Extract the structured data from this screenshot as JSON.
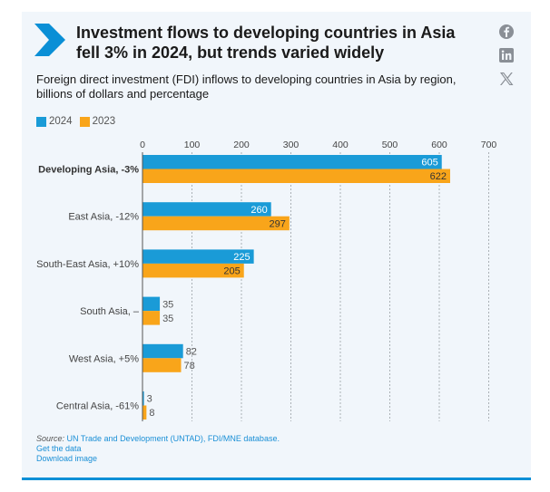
{
  "header": {
    "title": "Investment flows to developing countries in Asia fell 3% in 2024, but trends varied widely",
    "subtitle": "Foreign direct investment (FDI) inflows to developing countries in Asia by region, billions of dollars and percentage",
    "share_icons": [
      "facebook-icon",
      "linkedin-icon",
      "x-icon"
    ]
  },
  "colors": {
    "series_2024": "#1a9bd7",
    "series_2023": "#f9a51a",
    "accent": "#0a8fd6"
  },
  "chart_data": {
    "type": "bar",
    "orientation": "horizontal",
    "categories": [
      "Developing Asia, -3%",
      "East Asia, -12%",
      "South-East Asia, +10%",
      "South Asia, –",
      "West Asia, +5%",
      "Central Asia, -61%"
    ],
    "category_emphasis": [
      true,
      false,
      false,
      false,
      false,
      false
    ],
    "series": [
      {
        "name": "2024",
        "values": [
          605,
          260,
          225,
          35,
          82,
          3
        ],
        "color": "#1a9bd7"
      },
      {
        "name": "2023",
        "values": [
          622,
          297,
          205,
          35,
          78,
          8
        ],
        "color": "#f9a51a"
      }
    ],
    "xlim": [
      0,
      700
    ],
    "xticks": [
      0,
      100,
      200,
      300,
      400,
      500,
      600,
      700
    ],
    "grid": true,
    "legend": "top-left"
  },
  "footer": {
    "source_label": "Source:",
    "source_text": " UN Trade and Development (UNTAD), FDI/MNE database.",
    "get_data": "Get the data",
    "download": "Download image"
  }
}
